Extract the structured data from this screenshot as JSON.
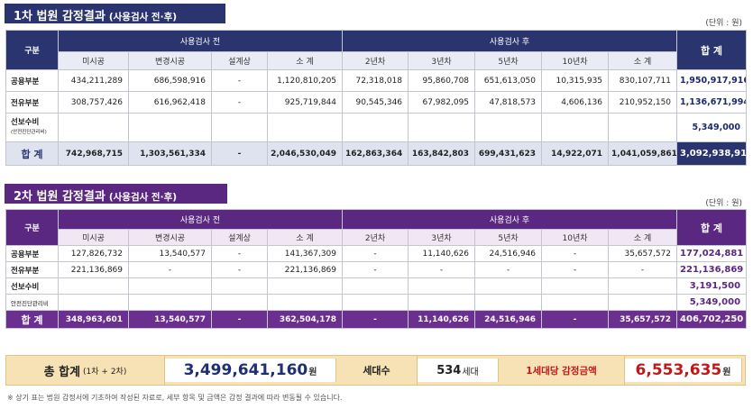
{
  "section1": {
    "title": "1차 법원 감정결과",
    "subtitle": "(사용검사 전·후)",
    "unit": "(단위 : 원)",
    "header": {
      "category": "구분",
      "before_group": "사용검사 전",
      "after_group": "사용검사 후",
      "total": "합 계",
      "before_cols": [
        "미시공",
        "변경시공",
        "설계상",
        "소 계"
      ],
      "after_cols": [
        "2년차",
        "3년차",
        "5년차",
        "10년차",
        "소 계"
      ]
    },
    "rows": [
      {
        "label": "공용부분",
        "before": [
          "434,211,289",
          "686,598,916",
          "-",
          "1,120,810,205"
        ],
        "after": [
          "72,318,018",
          "95,860,708",
          "651,613,050",
          "10,315,935",
          "830,107,711"
        ],
        "total": "1,950,917,916"
      },
      {
        "label": "전유부분",
        "before": [
          "308,757,426",
          "616,962,418",
          "-",
          "925,719,844"
        ],
        "after": [
          "90,545,346",
          "67,982,095",
          "47,818,573",
          "4,606,136",
          "210,952,150"
        ],
        "total": "1,136,671,994"
      },
      {
        "label": "선보수비",
        "sublabel": "(안전진단관리비)",
        "total": "5,349,000"
      }
    ],
    "total_row": {
      "label": "합 계",
      "before": [
        "742,968,715",
        "1,303,561,334",
        "-",
        "2,046,530,049"
      ],
      "after": [
        "162,863,364",
        "163,842,803",
        "699,431,623",
        "14,922,071",
        "1,041,059,861"
      ],
      "total": "3,092,938,910"
    }
  },
  "section2": {
    "title": "2차 법원 감정결과",
    "subtitle": "(사용검사 전·후)",
    "unit": "(단위 : 원)",
    "header": {
      "category": "구분",
      "before_group": "사용검사 전",
      "after_group": "사용검사 후",
      "total": "합 계",
      "before_cols": [
        "미시공",
        "변경시공",
        "설계상",
        "소 계"
      ],
      "after_cols": [
        "2년차",
        "3년차",
        "5년차",
        "10년차",
        "소 계"
      ]
    },
    "rows": [
      {
        "label": "공용부분",
        "before": [
          "127,826,732",
          "13,540,577",
          "-",
          "141,367,309"
        ],
        "after": [
          "-",
          "11,140,626",
          "24,516,946",
          "-",
          "35,657,572"
        ],
        "total": "177,024,881"
      },
      {
        "label": "전유부분",
        "before": [
          "221,136,869",
          "-",
          "-",
          "221,136,869"
        ],
        "after": [
          "-",
          "-",
          "-",
          "-",
          "-"
        ],
        "total": "221,136,869"
      },
      {
        "label": "선보수비",
        "total": "3,191,500"
      },
      {
        "label": "안전진단관리비",
        "total": "5,349,000"
      }
    ],
    "total_row": {
      "label": "합 계",
      "before": [
        "348,963,601",
        "13,540,577",
        "-",
        "362,504,178"
      ],
      "after": [
        "-",
        "11,140,626",
        "24,516,946",
        "-",
        "35,657,572"
      ],
      "total": "406,702,250"
    }
  },
  "summary": {
    "label": "총 합계",
    "label_sub": "(1차 + 2차)",
    "total_value": "3,499,641,160",
    "won": "원",
    "households_label": "세대수",
    "households_value": "534",
    "households_unit": "세대",
    "per_household_label": "1세대당 감정금액",
    "per_household_value": "6,553,635"
  },
  "note": "※ 상기 표는 법원 감정서에 기초하여 작성된 자료로, 세부 항목 및 금액은 감정 결과에 따라 변동될 수 있습니다.",
  "colors": {
    "navy": "#2a356f",
    "purple": "#5a2880",
    "summary_bg": "#f7e2b6",
    "red": "#c01818"
  }
}
